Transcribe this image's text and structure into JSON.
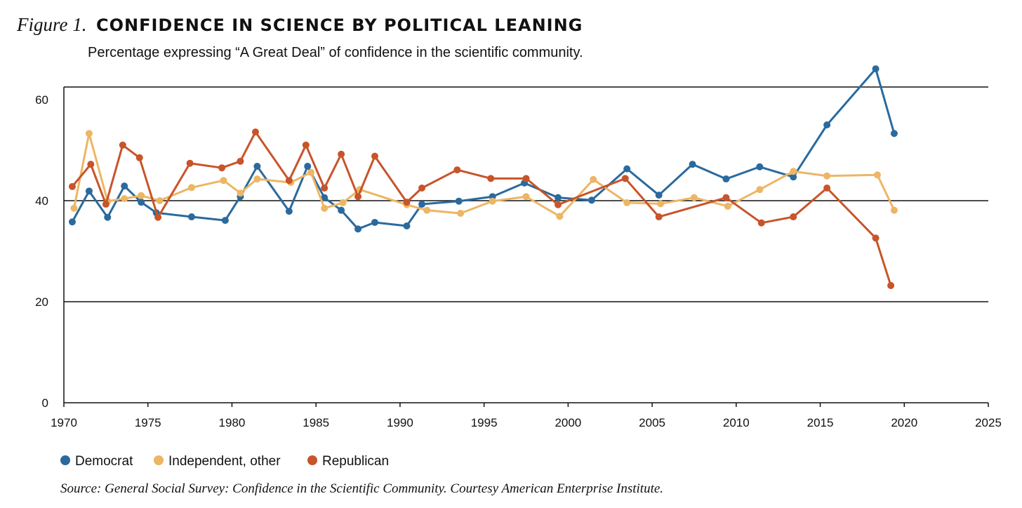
{
  "chart_data": {
    "type": "line",
    "figure_label": "Figure 1.",
    "title": "CONFIDENCE IN SCIENCE BY POLITICAL LEANING",
    "subtitle": "Percentage expressing “A Great Deal” of confidence in the scientific community.",
    "source": "Source: General Social Survey: Confidence in the Scientific Community. Courtesy American Enterprise Institute.",
    "xlim": [
      1970,
      2025
    ],
    "ylim": [
      0,
      62.5
    ],
    "x_ticks": [
      "1970",
      "1975",
      "1980",
      "1985",
      "1990",
      "1995",
      "2000",
      "2005",
      "2010",
      "2015",
      "2020",
      "2025"
    ],
    "y_ticks": [
      "0",
      "20",
      "40",
      "60"
    ],
    "gridlines_y": [
      20,
      40
    ],
    "legend_position": "bottom-left",
    "series": [
      {
        "name": "Democrat",
        "color": "#2a6a9e",
        "x": [
          1970.5,
          1971.5,
          1972.6,
          1973.6,
          1974.6,
          1975.5,
          1977.6,
          1979.6,
          1980.5,
          1981.5,
          1983.4,
          1984.5,
          1985.5,
          1986.5,
          1987.5,
          1988.5,
          1990.4,
          1991.3,
          1993.5,
          1995.5,
          1997.4,
          1999.4,
          2001.4,
          2003.5,
          2005.4,
          2007.4,
          2009.4,
          2011.4,
          2013.4,
          2015.4,
          2018.3,
          2019.4
        ],
        "y": [
          35.8,
          41.9,
          36.7,
          42.9,
          39.7,
          37.6,
          36.8,
          36.1,
          40.8,
          46.8,
          37.9,
          46.8,
          40.6,
          38.1,
          34.4,
          35.7,
          35.0,
          39.3,
          39.9,
          40.8,
          43.5,
          40.6,
          40.1,
          46.3,
          41.1,
          47.2,
          44.3,
          46.7,
          44.7,
          55.0,
          66.1,
          53.3
        ]
      },
      {
        "name": "Independent, other",
        "color": "#ecb665",
        "x": [
          1970.6,
          1971.5,
          1972.6,
          1973.6,
          1974.6,
          1975.7,
          1977.6,
          1979.5,
          1980.5,
          1981.5,
          1983.5,
          1984.7,
          1985.5,
          1986.6,
          1987.6,
          1990.4,
          1991.6,
          1993.6,
          1995.5,
          1997.5,
          1999.5,
          2001.5,
          2003.5,
          2005.5,
          2007.5,
          2009.5,
          2011.4,
          2013.4,
          2015.4,
          2018.4,
          2019.4
        ],
        "y": [
          38.5,
          53.3,
          39.9,
          40.4,
          41.0,
          40.0,
          42.6,
          44.0,
          41.5,
          44.3,
          43.6,
          45.6,
          38.5,
          39.6,
          42.2,
          39.2,
          38.1,
          37.5,
          39.9,
          40.8,
          36.9,
          44.2,
          39.6,
          39.4,
          40.6,
          38.9,
          42.2,
          45.8,
          44.9,
          45.1,
          38.1
        ]
      },
      {
        "name": "Republican",
        "color": "#c8542a",
        "x": [
          1970.5,
          1971.6,
          1972.5,
          1973.5,
          1974.5,
          1975.6,
          1977.5,
          1979.4,
          1980.5,
          1981.4,
          1983.4,
          1984.4,
          1985.5,
          1986.5,
          1987.5,
          1988.5,
          1990.4,
          1991.3,
          1993.4,
          1995.4,
          1997.5,
          1999.4,
          2003.4,
          2005.4,
          2009.4,
          2011.5,
          2013.4,
          2015.4,
          2018.3,
          2019.2
        ],
        "y": [
          42.8,
          47.2,
          39.3,
          51.0,
          48.5,
          36.7,
          47.4,
          46.5,
          47.8,
          53.6,
          44.0,
          51.0,
          42.5,
          49.2,
          40.8,
          48.8,
          39.7,
          42.5,
          46.1,
          44.4,
          44.4,
          39.2,
          44.4,
          36.8,
          40.6,
          35.6,
          36.8,
          42.5,
          32.6,
          23.2
        ]
      }
    ]
  }
}
